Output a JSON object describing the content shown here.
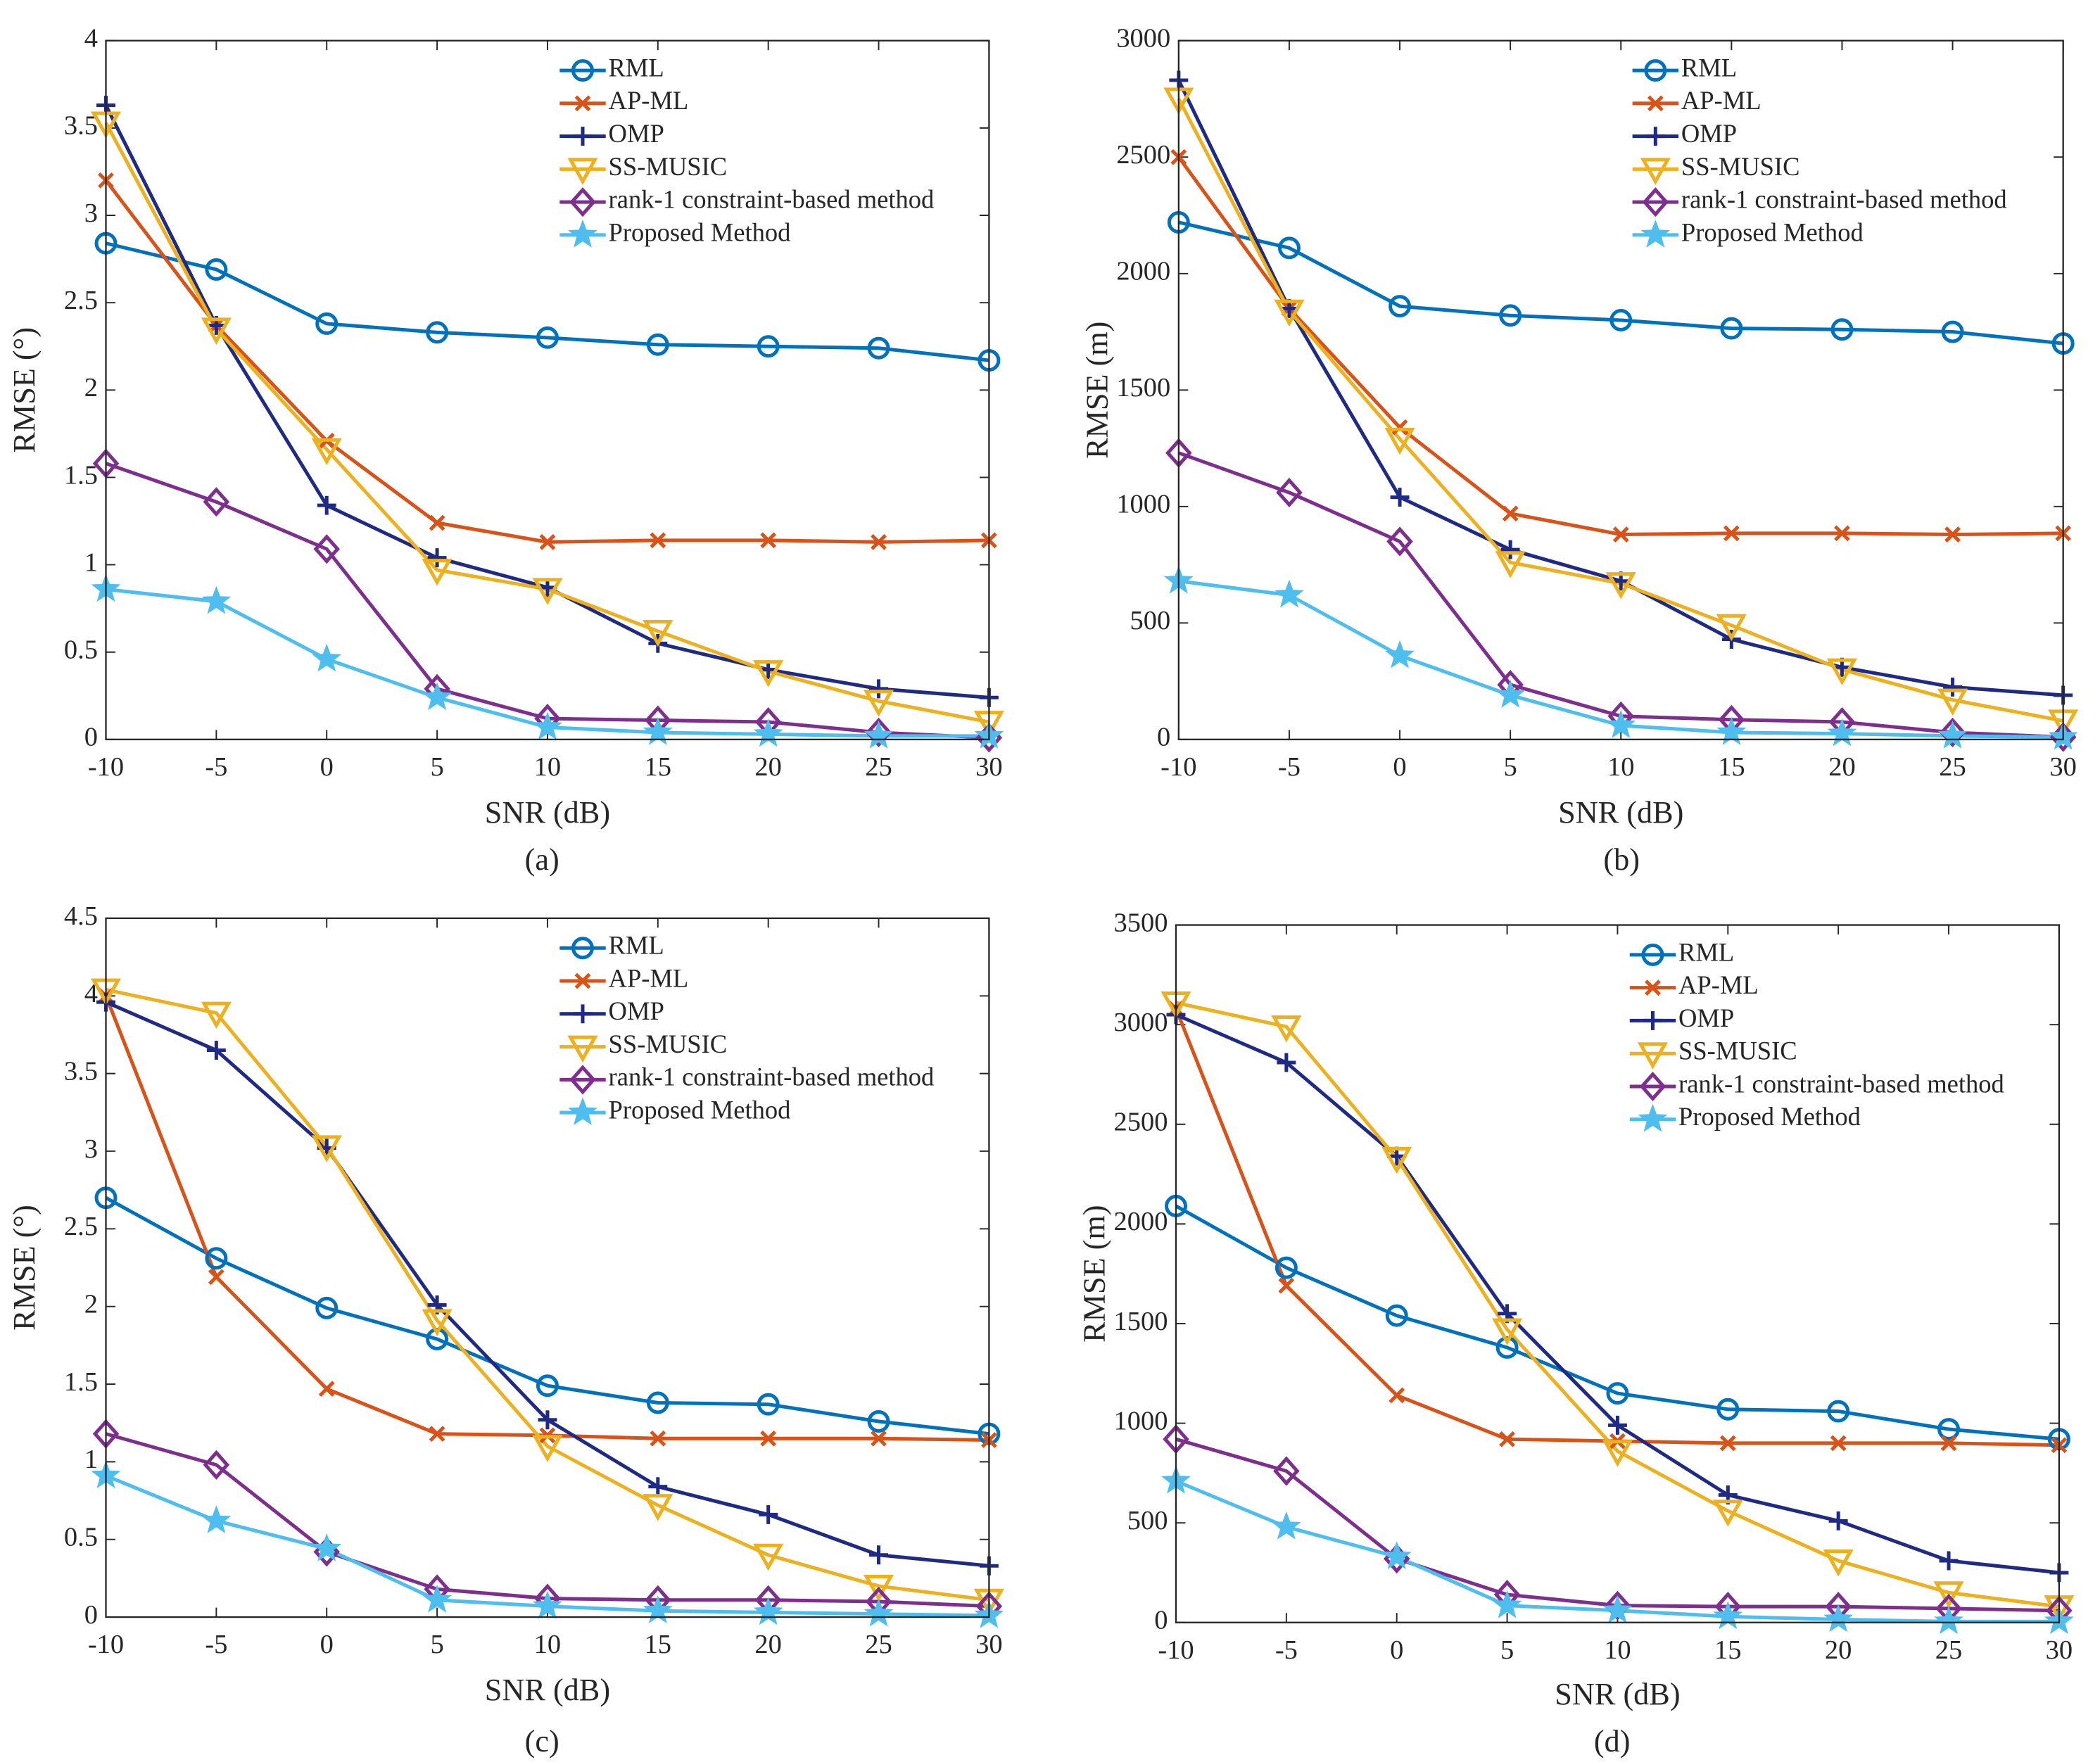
{
  "chart_data": [
    {
      "type": "line",
      "caption": "(a)",
      "xlabel": "SNR (dB)",
      "ylabel": "RMSE (°)",
      "x": [
        -10,
        -5,
        0,
        5,
        10,
        15,
        20,
        25,
        30
      ],
      "xlim": [
        -10,
        30
      ],
      "xticks": [
        -10,
        -5,
        0,
        5,
        10,
        15,
        20,
        25,
        30
      ],
      "ylim": [
        0,
        4
      ],
      "yticks": [
        0,
        0.5,
        1,
        1.5,
        2,
        2.5,
        3,
        3.5,
        4
      ],
      "grid": false,
      "legend": "northeast",
      "series": [
        {
          "name": "RML",
          "color": "#0072BD",
          "marker": "o",
          "values": [
            2.84,
            2.69,
            2.38,
            2.33,
            2.3,
            2.26,
            2.25,
            2.24,
            2.17
          ]
        },
        {
          "name": "AP-ML",
          "color": "#D95319",
          "marker": "x",
          "values": [
            3.2,
            2.37,
            1.71,
            1.24,
            1.13,
            1.14,
            1.14,
            1.13,
            1.14
          ]
        },
        {
          "name": "OMP",
          "color": "#1F2A85",
          "marker": "+",
          "values": [
            3.63,
            2.37,
            1.34,
            1.04,
            0.87,
            0.55,
            0.4,
            0.29,
            0.24
          ]
        },
        {
          "name": "SS-MUSIC",
          "color": "#EDB120",
          "marker": "v",
          "values": [
            3.53,
            2.35,
            1.66,
            0.97,
            0.86,
            0.62,
            0.39,
            0.22,
            0.1
          ]
        },
        {
          "name": "rank-1 constraint-based method",
          "color": "#7E2F8E",
          "marker": "d",
          "values": [
            1.58,
            1.36,
            1.09,
            0.29,
            0.12,
            0.11,
            0.1,
            0.04,
            0.01
          ]
        },
        {
          "name": "Proposed Method",
          "color": "#4DBEEE",
          "marker": "p",
          "values": [
            0.86,
            0.79,
            0.46,
            0.24,
            0.07,
            0.04,
            0.03,
            0.02,
            0.02
          ]
        }
      ]
    },
    {
      "type": "line",
      "caption": "(b)",
      "xlabel": "SNR (dB)",
      "ylabel": "RMSE (m)",
      "x": [
        -10,
        -5,
        0,
        5,
        10,
        15,
        20,
        25,
        30
      ],
      "xlim": [
        -10,
        30
      ],
      "xticks": [
        -10,
        -5,
        0,
        5,
        10,
        15,
        20,
        25,
        30
      ],
      "ylim": [
        0,
        3000
      ],
      "yticks": [
        0,
        500,
        1000,
        1500,
        2000,
        2500,
        3000
      ],
      "grid": false,
      "legend": "northeast",
      "series": [
        {
          "name": "RML",
          "color": "#0072BD",
          "marker": "o",
          "values": [
            2220,
            2110,
            1860,
            1820,
            1800,
            1765,
            1760,
            1750,
            1700
          ]
        },
        {
          "name": "AP-ML",
          "color": "#D95319",
          "marker": "x",
          "values": [
            2500,
            1850,
            1340,
            970,
            880,
            885,
            885,
            880,
            885
          ]
        },
        {
          "name": "OMP",
          "color": "#1F2A85",
          "marker": "+",
          "values": [
            2830,
            1850,
            1040,
            815,
            680,
            430,
            310,
            225,
            190
          ]
        },
        {
          "name": "SS-MUSIC",
          "color": "#EDB120",
          "marker": "v",
          "values": [
            2750,
            1840,
            1290,
            760,
            670,
            490,
            300,
            170,
            80
          ]
        },
        {
          "name": "rank-1 constraint-based method",
          "color": "#7E2F8E",
          "marker": "d",
          "values": [
            1230,
            1060,
            850,
            235,
            100,
            85,
            75,
            30,
            10
          ]
        },
        {
          "name": "Proposed Method",
          "color": "#4DBEEE",
          "marker": "p",
          "values": [
            680,
            620,
            360,
            190,
            60,
            30,
            25,
            15,
            10
          ]
        }
      ]
    },
    {
      "type": "line",
      "caption": "(c)",
      "xlabel": "SNR (dB)",
      "ylabel": "RMSE (°)",
      "x": [
        -10,
        -5,
        0,
        5,
        10,
        15,
        20,
        25,
        30
      ],
      "xlim": [
        -10,
        30
      ],
      "xticks": [
        -10,
        -5,
        0,
        5,
        10,
        15,
        20,
        25,
        30
      ],
      "ylim": [
        0,
        4.5
      ],
      "yticks": [
        0,
        0.5,
        1,
        1.5,
        2,
        2.5,
        3,
        3.5,
        4,
        4.5
      ],
      "grid": false,
      "legend": "northeast",
      "series": [
        {
          "name": "RML",
          "color": "#0072BD",
          "marker": "o",
          "values": [
            2.7,
            2.31,
            1.99,
            1.79,
            1.49,
            1.38,
            1.37,
            1.26,
            1.18
          ]
        },
        {
          "name": "AP-ML",
          "color": "#D95319",
          "marker": "x",
          "values": [
            4.0,
            2.19,
            1.47,
            1.18,
            1.17,
            1.15,
            1.15,
            1.15,
            1.14
          ]
        },
        {
          "name": "OMP",
          "color": "#1F2A85",
          "marker": "+",
          "values": [
            3.96,
            3.65,
            3.02,
            2.01,
            1.27,
            0.84,
            0.66,
            0.4,
            0.33
          ]
        },
        {
          "name": "SS-MUSIC",
          "color": "#EDB120",
          "marker": "v",
          "values": [
            4.04,
            3.89,
            3.03,
            1.91,
            1.1,
            0.72,
            0.4,
            0.2,
            0.11
          ]
        },
        {
          "name": "rank-1 constraint-based method",
          "color": "#7E2F8E",
          "marker": "d",
          "values": [
            1.18,
            0.98,
            0.42,
            0.18,
            0.12,
            0.11,
            0.11,
            0.1,
            0.07
          ]
        },
        {
          "name": "Proposed Method",
          "color": "#4DBEEE",
          "marker": "p",
          "values": [
            0.91,
            0.62,
            0.44,
            0.11,
            0.07,
            0.04,
            0.03,
            0.02,
            0.01
          ]
        }
      ]
    },
    {
      "type": "line",
      "caption": "(d)",
      "xlabel": "SNR (dB)",
      "ylabel": "RMSE (m)",
      "x": [
        -10,
        -5,
        0,
        5,
        10,
        15,
        20,
        25,
        30
      ],
      "xlim": [
        -10,
        30
      ],
      "xticks": [
        -10,
        -5,
        0,
        5,
        10,
        15,
        20,
        25,
        30
      ],
      "ylim": [
        0,
        3500
      ],
      "yticks": [
        0,
        500,
        1000,
        1500,
        2000,
        2500,
        3000,
        3500
      ],
      "grid": false,
      "legend": "northeast",
      "series": [
        {
          "name": "RML",
          "color": "#0072BD",
          "marker": "o",
          "values": [
            2090,
            1780,
            1540,
            1380,
            1150,
            1070,
            1060,
            970,
            920
          ]
        },
        {
          "name": "AP-ML",
          "color": "#D95319",
          "marker": "x",
          "values": [
            3080,
            1690,
            1140,
            920,
            910,
            900,
            900,
            900,
            890
          ]
        },
        {
          "name": "OMP",
          "color": "#1F2A85",
          "marker": "+",
          "values": [
            3050,
            2810,
            2340,
            1550,
            990,
            640,
            510,
            310,
            250
          ]
        },
        {
          "name": "SS-MUSIC",
          "color": "#EDB120",
          "marker": "v",
          "values": [
            3110,
            2990,
            2330,
            1470,
            860,
            560,
            310,
            150,
            80
          ]
        },
        {
          "name": "rank-1 constraint-based method",
          "color": "#7E2F8E",
          "marker": "d",
          "values": [
            920,
            760,
            320,
            140,
            85,
            80,
            80,
            70,
            60
          ]
        },
        {
          "name": "Proposed Method",
          "color": "#4DBEEE",
          "marker": "p",
          "values": [
            710,
            480,
            330,
            85,
            60,
            30,
            15,
            5,
            5
          ]
        }
      ]
    }
  ]
}
